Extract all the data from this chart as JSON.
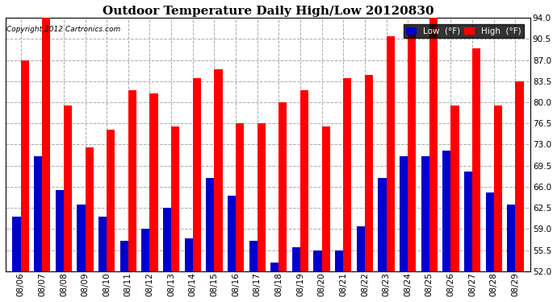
{
  "title": "Outdoor Temperature Daily High/Low 20120830",
  "copyright": "Copyright 2012 Cartronics.com",
  "ylim": [
    52.0,
    94.0
  ],
  "yticks": [
    52.0,
    55.5,
    59.0,
    62.5,
    66.0,
    69.5,
    73.0,
    76.5,
    80.0,
    83.5,
    87.0,
    90.5,
    94.0
  ],
  "dates": [
    "08/06",
    "08/07",
    "08/08",
    "08/09",
    "08/10",
    "08/11",
    "08/12",
    "08/13",
    "08/14",
    "08/15",
    "08/16",
    "08/17",
    "08/18",
    "08/19",
    "08/20",
    "08/21",
    "08/22",
    "08/23",
    "08/24",
    "08/25",
    "08/26",
    "08/27",
    "08/28",
    "08/29"
  ],
  "highs": [
    87.0,
    94.0,
    79.5,
    72.5,
    75.5,
    82.0,
    81.5,
    76.0,
    84.0,
    85.5,
    76.5,
    76.5,
    80.0,
    82.0,
    76.0,
    84.0,
    84.5,
    91.0,
    92.0,
    94.0,
    79.5,
    89.0,
    79.5,
    83.5
  ],
  "lows": [
    61.0,
    71.0,
    65.5,
    63.0,
    61.0,
    57.0,
    59.0,
    62.5,
    57.5,
    67.5,
    64.5,
    57.0,
    53.5,
    56.0,
    55.5,
    55.5,
    59.5,
    67.5,
    71.0,
    71.0,
    72.0,
    68.5,
    65.0,
    63.0
  ],
  "high_color": "#ff0000",
  "low_color": "#0000cc",
  "bg_color": "#ffffff",
  "grid_color": "#aaaaaa",
  "title_fontsize": 11,
  "tick_fontsize": 7.5,
  "legend_low_label": "Low  (°F)",
  "legend_high_label": "High  (°F)"
}
